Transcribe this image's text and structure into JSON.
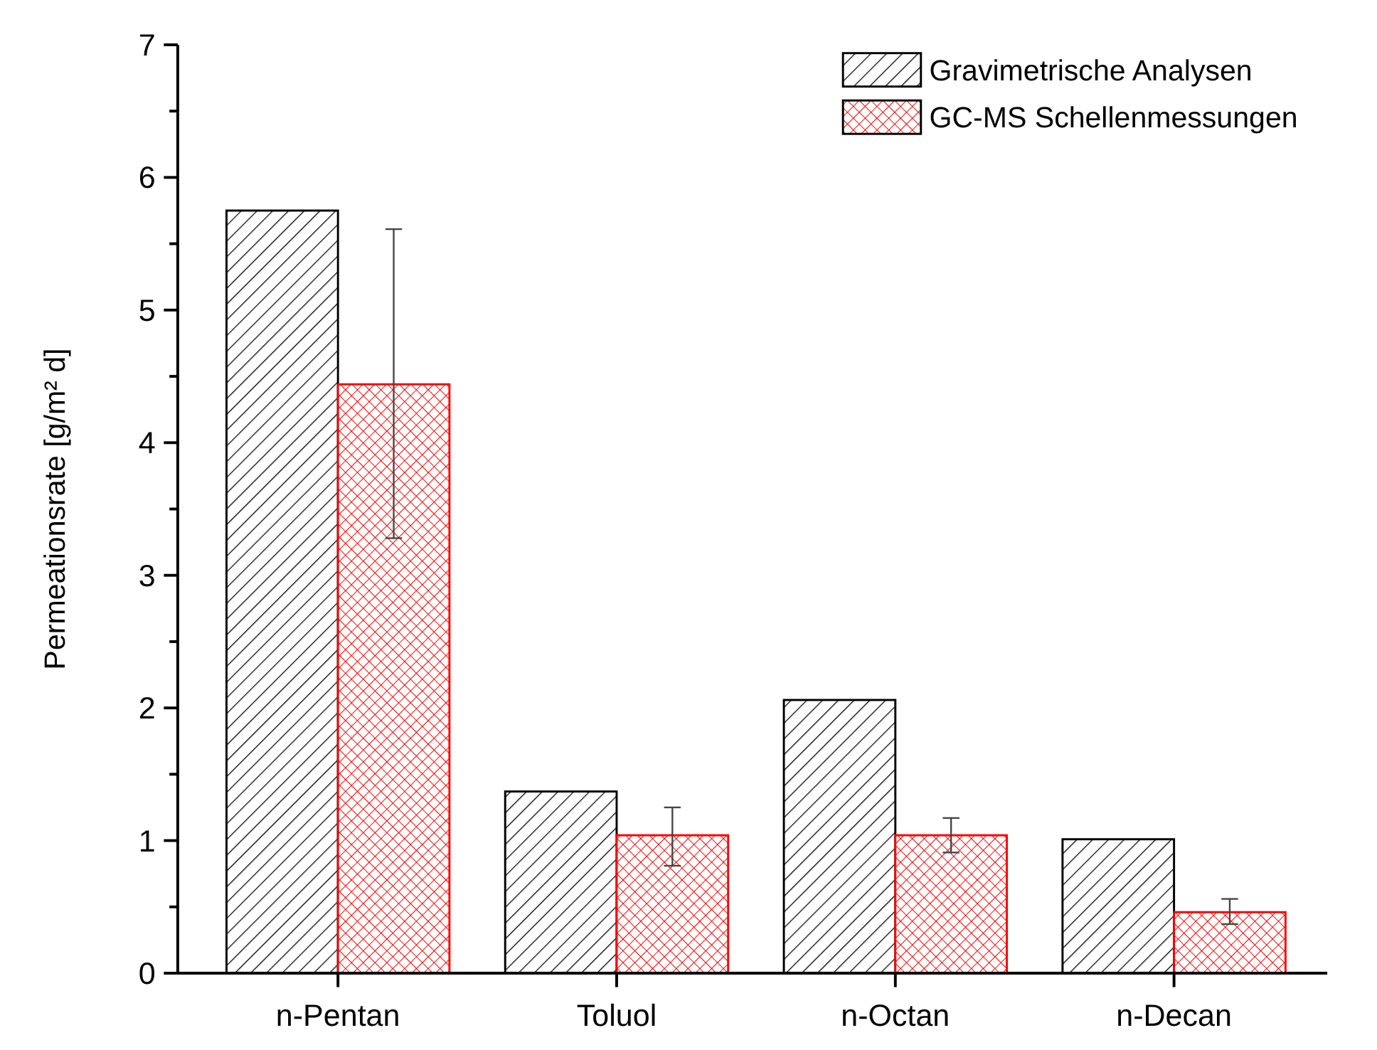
{
  "chart_data": {
    "type": "bar",
    "ylabel": "Permeationsrate [g/m² d]",
    "categories": [
      "n-Pentan",
      "Toluol",
      "n-Octan",
      "n-Decan"
    ],
    "series": [
      {
        "name": "Gravimetrische Analysen",
        "color": "#000000",
        "values": [
          5.75,
          1.37,
          2.06,
          1.01
        ]
      },
      {
        "name": "GC-MS Schellenmessungen",
        "color": "#ff0000",
        "values": [
          4.44,
          1.04,
          1.04,
          0.46
        ],
        "errors": [
          [
            3.28,
            5.61
          ],
          [
            0.81,
            1.25
          ],
          [
            0.91,
            1.17
          ],
          [
            0.37,
            0.56
          ]
        ]
      }
    ],
    "ylim": [
      0,
      7
    ],
    "yticks": [
      0,
      {
        "value": 0.5,
        "label": null
      },
      1,
      {
        "value": 1.5,
        "label": null
      },
      2,
      {
        "value": 2.5,
        "label": null
      },
      3,
      {
        "value": 3.5,
        "label": null
      },
      4,
      {
        "value": 4.5,
        "label": null
      },
      5,
      {
        "value": 5.5,
        "label": null
      },
      6,
      {
        "value": 6.5,
        "label": null
      },
      7
    ],
    "legend": "top right"
  }
}
